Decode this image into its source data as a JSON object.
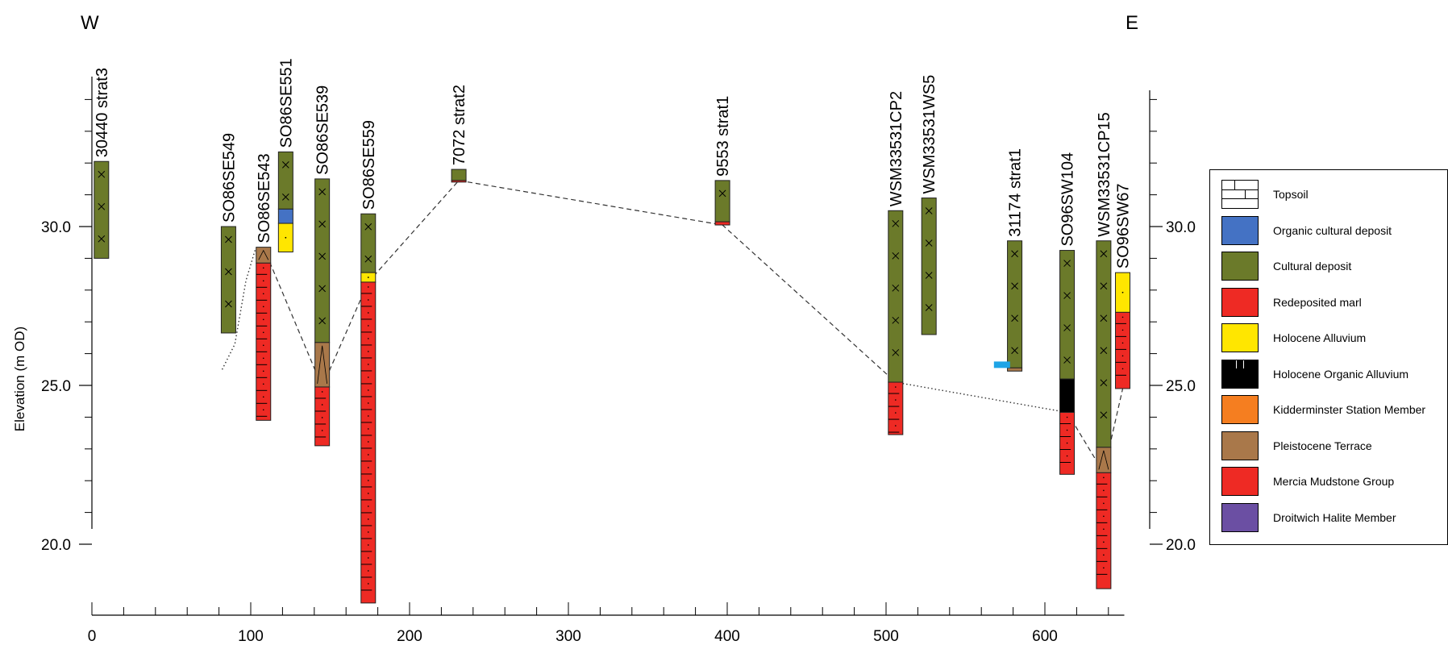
{
  "direction": {
    "west": "W",
    "east": "E"
  },
  "y_axis": {
    "label": "Elevation (m OD)",
    "ticks": [
      "30.0",
      "25.0",
      "20.0"
    ],
    "tick_values": [
      30,
      25,
      20
    ]
  },
  "x_axis": {
    "ticks": [
      "0",
      "100",
      "200",
      "300",
      "400",
      "500",
      "600"
    ],
    "tick_values": [
      0,
      100,
      200,
      300,
      400,
      500,
      600
    ]
  },
  "colors": {
    "topsoil": "#ffffff",
    "organic_cultural": "#4472c4",
    "cultural": "#6b7a2a",
    "redeposited_marl": "#ee2a24",
    "holocene_alluvium": "#ffe600",
    "holocene_organic": "#000000",
    "kidderminster": "#f57e20",
    "pleistocene_terrace": "#a9784a",
    "mercia": "#ee2a24",
    "droitwich": "#6b4fa3",
    "marker": "#1ea4e6"
  },
  "legend": [
    {
      "key": "topsoil",
      "label": "Topsoil"
    },
    {
      "key": "organic_cultural",
      "label": "Organic cultural deposit"
    },
    {
      "key": "cultural",
      "label": "Cultural deposit"
    },
    {
      "key": "redeposited_marl",
      "label": "Redeposited marl"
    },
    {
      "key": "holocene_alluvium",
      "label": "Holocene Alluvium"
    },
    {
      "key": "holocene_organic",
      "label": "Holocene Organic Alluvium"
    },
    {
      "key": "kidderminster",
      "label": "Kidderminster Station Member"
    },
    {
      "key": "pleistocene_terrace",
      "label": "Pleistocene Terrace"
    },
    {
      "key": "mercia",
      "label": "Mercia Mudstone Group"
    },
    {
      "key": "droitwich",
      "label": "Droitwich Halite Member"
    }
  ],
  "boreholes": [
    {
      "name": "30440 strat3",
      "x": 6,
      "layers": [
        {
          "key": "cultural",
          "top": 32.05,
          "bottom": 29.0
        }
      ]
    },
    {
      "name": "SO86SE549",
      "x": 86,
      "layers": [
        {
          "key": "cultural",
          "top": 30.0,
          "bottom": 26.65
        }
      ]
    },
    {
      "name": "SO86SE543",
      "x": 108,
      "layers": [
        {
          "key": "pleistocene_terrace",
          "top": 29.35,
          "bottom": 28.85
        },
        {
          "key": "mercia",
          "top": 28.85,
          "bottom": 23.9
        }
      ]
    },
    {
      "name": "SO86SE551",
      "x": 122,
      "layers": [
        {
          "key": "cultural",
          "top": 32.35,
          "bottom": 30.55
        },
        {
          "key": "organic_cultural",
          "top": 30.55,
          "bottom": 30.1
        },
        {
          "key": "holocene_alluvium",
          "top": 30.1,
          "bottom": 29.2
        }
      ]
    },
    {
      "name": "SO86SE539",
      "x": 145,
      "layers": [
        {
          "key": "cultural",
          "top": 31.5,
          "bottom": 26.35
        },
        {
          "key": "pleistocene_terrace",
          "top": 26.35,
          "bottom": 24.95
        },
        {
          "key": "mercia",
          "top": 24.95,
          "bottom": 23.1
        }
      ]
    },
    {
      "name": "SO86SE559",
      "x": 174,
      "layers": [
        {
          "key": "cultural",
          "top": 30.4,
          "bottom": 28.55
        },
        {
          "key": "holocene_alluvium",
          "top": 28.55,
          "bottom": 28.25
        },
        {
          "key": "mercia",
          "top": 28.25,
          "bottom": 18.15
        }
      ]
    },
    {
      "name": "7072 strat2",
      "x": 231,
      "layers": [
        {
          "key": "cultural",
          "top": 31.8,
          "bottom": 31.45
        },
        {
          "key": "mercia",
          "top": 31.45,
          "bottom": 31.4
        }
      ]
    },
    {
      "name": "9553 strat1",
      "x": 397,
      "layers": [
        {
          "key": "cultural",
          "top": 31.45,
          "bottom": 30.15
        },
        {
          "key": "mercia",
          "top": 30.15,
          "bottom": 30.05
        }
      ]
    },
    {
      "name": "WSM33531CP2",
      "x": 506,
      "layers": [
        {
          "key": "cultural",
          "top": 30.5,
          "bottom": 25.1
        },
        {
          "key": "mercia",
          "top": 25.1,
          "bottom": 23.45
        }
      ]
    },
    {
      "name": "WSM33531WS5",
      "x": 527,
      "layers": [
        {
          "key": "cultural",
          "top": 30.9,
          "bottom": 26.6
        }
      ]
    },
    {
      "name": "31174 strat1",
      "x": 581,
      "layers": [
        {
          "key": "cultural",
          "top": 29.55,
          "bottom": 25.55
        },
        {
          "key": "pleistocene_terrace",
          "top": 25.55,
          "bottom": 25.45
        }
      ]
    },
    {
      "name": "SO96SW104",
      "x": 614,
      "layers": [
        {
          "key": "cultural",
          "top": 29.25,
          "bottom": 25.2
        },
        {
          "key": "holocene_organic",
          "top": 25.2,
          "bottom": 24.15
        },
        {
          "key": "mercia",
          "top": 24.15,
          "bottom": 22.2
        }
      ]
    },
    {
      "name": "WSM33531CP15",
      "x": 637,
      "layers": [
        {
          "key": "cultural",
          "top": 29.55,
          "bottom": 23.05
        },
        {
          "key": "pleistocene_terrace",
          "top": 23.05,
          "bottom": 22.25
        },
        {
          "key": "mercia",
          "top": 22.25,
          "bottom": 18.6
        }
      ]
    },
    {
      "name": "SO96SW67",
      "x": 649,
      "layers": [
        {
          "key": "holocene_alluvium",
          "top": 28.55,
          "bottom": 27.3
        },
        {
          "key": "mercia",
          "top": 27.3,
          "bottom": 24.9
        }
      ]
    }
  ],
  "marker": {
    "x": 573,
    "elevation": 25.65
  },
  "dashed_line": [
    [
      108,
      29.35
    ],
    [
      145,
      24.95
    ],
    [
      174,
      28.25
    ],
    [
      231,
      31.45
    ],
    [
      397,
      30.05
    ],
    [
      506,
      25.1
    ]
  ],
  "dashed_line_east": [
    [
      614,
      24.15
    ],
    [
      637,
      22.25
    ],
    [
      649,
      24.9
    ]
  ],
  "dotted_line": [
    [
      506,
      25.1
    ],
    [
      614,
      24.15
    ]
  ],
  "dotted_curve": [
    [
      82,
      25.5
    ],
    [
      90,
      26.3
    ],
    [
      97,
      28.3
    ],
    [
      103,
      29.3
    ]
  ]
}
